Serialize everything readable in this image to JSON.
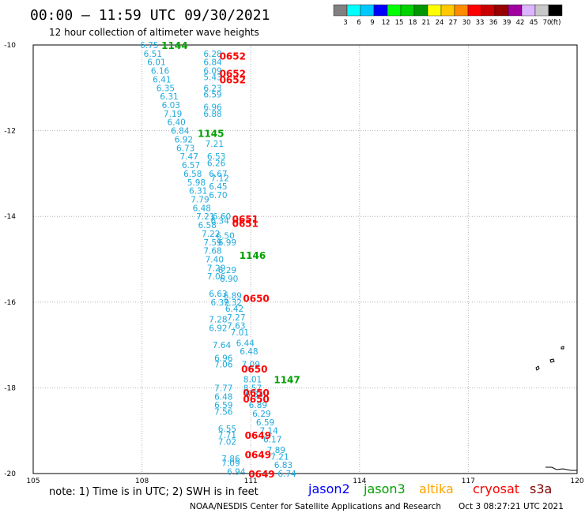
{
  "header": {
    "title": "00:00 — 11:59 UTC 09/30/2021",
    "subtitle": "12 hour collection of altimeter wave heights"
  },
  "colorbar": {
    "colors": [
      "#808080",
      "#00ffff",
      "#00c8ff",
      "#0000ff",
      "#00ff00",
      "#00d200",
      "#009600",
      "#ffff00",
      "#ffc800",
      "#ff8c00",
      "#ff0000",
      "#c80000",
      "#960000",
      "#a000a0",
      "#dcb4ff",
      "#c8c8c8",
      "#000000"
    ],
    "labels": [
      "3",
      "6",
      "9",
      "12",
      "15",
      "18",
      "21",
      "24",
      "27",
      "30",
      "33",
      "36",
      "39",
      "42",
      "45",
      "70",
      "(ft)"
    ]
  },
  "footer": {
    "note": "note: 1) Time is in UTC; 2) SWH is in feet",
    "credit": "NOAA/NESDIS Center for Satellite Applications and Research",
    "timestamp": "Oct  3 08:27:21 UTC 2021"
  },
  "satellites": [
    {
      "name": "jason2",
      "color": "#0000ff"
    },
    {
      "name": "jason3",
      "color": "#00a000"
    },
    {
      "name": "altika",
      "color": "#ffa500"
    },
    {
      "name": "cryosat",
      "color": "#ff0000"
    },
    {
      "name": "s3a",
      "color": "#800000"
    }
  ],
  "chart_data": {
    "type": "scatter",
    "x_ticks": [
      "105",
      "108",
      "111",
      "114",
      "117",
      "120"
    ],
    "y_ticks": [
      "-10",
      "-12",
      "-14",
      "-16",
      "-18",
      "-20"
    ],
    "xlim": [
      105,
      120
    ],
    "ylim": [
      -20,
      -10
    ],
    "grid": true,
    "swh_color": "#1eaadc",
    "swh_points": [
      {
        "lon": 108.2,
        "lat": -10.0,
        "v": "6.75"
      },
      {
        "lon": 108.3,
        "lat": -10.2,
        "v": "6.51"
      },
      {
        "lon": 108.4,
        "lat": -10.4,
        "v": "6.01"
      },
      {
        "lon": 108.5,
        "lat": -10.6,
        "v": "6.16"
      },
      {
        "lon": 108.55,
        "lat": -10.8,
        "v": "6.41"
      },
      {
        "lon": 108.65,
        "lat": -11.0,
        "v": "6.35"
      },
      {
        "lon": 108.75,
        "lat": -11.2,
        "v": "6.31"
      },
      {
        "lon": 108.8,
        "lat": -11.4,
        "v": "6.03"
      },
      {
        "lon": 108.85,
        "lat": -11.6,
        "v": "7.19"
      },
      {
        "lon": 108.95,
        "lat": -11.8,
        "v": "6.40"
      },
      {
        "lon": 109.05,
        "lat": -12.0,
        "v": "6.84"
      },
      {
        "lon": 109.15,
        "lat": -12.2,
        "v": "6.92"
      },
      {
        "lon": 109.2,
        "lat": -12.4,
        "v": "6.73"
      },
      {
        "lon": 109.3,
        "lat": -12.6,
        "v": "7.47"
      },
      {
        "lon": 109.35,
        "lat": -12.8,
        "v": "6.57"
      },
      {
        "lon": 109.4,
        "lat": -13.0,
        "v": "6.58"
      },
      {
        "lon": 109.5,
        "lat": -13.2,
        "v": "5.98"
      },
      {
        "lon": 109.55,
        "lat": -13.4,
        "v": "6.31"
      },
      {
        "lon": 109.6,
        "lat": -13.6,
        "v": "7.79"
      },
      {
        "lon": 109.65,
        "lat": -13.8,
        "v": "6.48"
      },
      {
        "lon": 109.75,
        "lat": -14.0,
        "v": "7.21"
      },
      {
        "lon": 109.8,
        "lat": -14.2,
        "v": "6.58"
      },
      {
        "lon": 109.9,
        "lat": -14.4,
        "v": "7.22"
      },
      {
        "lon": 109.95,
        "lat": -14.6,
        "v": "7.59"
      },
      {
        "lon": 109.95,
        "lat": -14.8,
        "v": "7.68"
      },
      {
        "lon": 110.0,
        "lat": -15.0,
        "v": "7.40"
      },
      {
        "lon": 110.05,
        "lat": -15.2,
        "v": "7.29"
      },
      {
        "lon": 110.05,
        "lat": -15.4,
        "v": "7.06"
      },
      {
        "lon": 110.1,
        "lat": -15.8,
        "v": "6.63"
      },
      {
        "lon": 110.15,
        "lat": -16.0,
        "v": "6.39"
      },
      {
        "lon": 110.1,
        "lat": -16.4,
        "v": "7.28"
      },
      {
        "lon": 110.1,
        "lat": -16.6,
        "v": "6.92"
      },
      {
        "lon": 110.2,
        "lat": -17.0,
        "v": "7.64"
      },
      {
        "lon": 110.25,
        "lat": -17.3,
        "v": "6.96"
      },
      {
        "lon": 110.25,
        "lat": -17.45,
        "v": "7.06"
      },
      {
        "lon": 110.25,
        "lat": -18.0,
        "v": "7.77"
      },
      {
        "lon": 110.25,
        "lat": -18.2,
        "v": "6.48"
      },
      {
        "lon": 110.25,
        "lat": -18.4,
        "v": "6.59"
      },
      {
        "lon": 110.25,
        "lat": -18.55,
        "v": "7.56"
      },
      {
        "lon": 110.35,
        "lat": -18.95,
        "v": "6.55"
      },
      {
        "lon": 110.35,
        "lat": -19.1,
        "v": "7.71"
      },
      {
        "lon": 110.35,
        "lat": -19.25,
        "v": "7.02"
      },
      {
        "lon": 110.45,
        "lat": -19.65,
        "v": "7.86"
      },
      {
        "lon": 110.45,
        "lat": -19.75,
        "v": "7.09"
      },
      {
        "lon": 110.45,
        "lat": -19.85,
        "v": ""
      },
      {
        "lon": 110.6,
        "lat": -19.95,
        "v": "6.94"
      },
      {
        "lon": 109.95,
        "lat": -10.2,
        "v": "6.28"
      },
      {
        "lon": 109.95,
        "lat": -10.4,
        "v": "6.84"
      },
      {
        "lon": 109.95,
        "lat": -10.6,
        "v": "6.09"
      },
      {
        "lon": 109.95,
        "lat": -10.75,
        "v": "5.43"
      },
      {
        "lon": 109.95,
        "lat": -11.0,
        "v": "6.23"
      },
      {
        "lon": 109.95,
        "lat": -11.15,
        "v": "6.59"
      },
      {
        "lon": 109.95,
        "lat": -11.45,
        "v": "6.96"
      },
      {
        "lon": 109.95,
        "lat": -11.6,
        "v": "6.88"
      },
      {
        "lon": 110.0,
        "lat": -12.3,
        "v": "7.21"
      },
      {
        "lon": 110.05,
        "lat": -12.6,
        "v": "6.53"
      },
      {
        "lon": 110.05,
        "lat": -12.75,
        "v": "6.26"
      },
      {
        "lon": 110.1,
        "lat": -13.0,
        "v": "6.67"
      },
      {
        "lon": 110.15,
        "lat": -13.1,
        "v": "7.12"
      },
      {
        "lon": 110.1,
        "lat": -13.3,
        "v": "6.45"
      },
      {
        "lon": 110.1,
        "lat": -13.5,
        "v": "6.70"
      },
      {
        "lon": 110.2,
        "lat": -14.0,
        "v": "6.60"
      },
      {
        "lon": 110.15,
        "lat": -14.1,
        "v": "6.34"
      },
      {
        "lon": 110.3,
        "lat": -14.45,
        "v": "6.50"
      },
      {
        "lon": 110.35,
        "lat": -14.6,
        "v": "6.99"
      },
      {
        "lon": 110.35,
        "lat": -15.25,
        "v": "6.29"
      },
      {
        "lon": 110.4,
        "lat": -15.45,
        "v": "6.90"
      },
      {
        "lon": 110.5,
        "lat": -15.85,
        "v": "6.89"
      },
      {
        "lon": 110.5,
        "lat": -16.0,
        "v": "7.32"
      },
      {
        "lon": 110.55,
        "lat": -16.15,
        "v": "6.42"
      },
      {
        "lon": 110.6,
        "lat": -16.35,
        "v": "7.27"
      },
      {
        "lon": 110.6,
        "lat": -16.55,
        "v": "7.63"
      },
      {
        "lon": 110.7,
        "lat": -16.7,
        "v": "7.01"
      },
      {
        "lon": 110.85,
        "lat": -16.95,
        "v": "6.44"
      },
      {
        "lon": 110.95,
        "lat": -17.15,
        "v": "6.48"
      },
      {
        "lon": 111.0,
        "lat": -17.45,
        "v": "7.09"
      },
      {
        "lon": 111.05,
        "lat": -17.8,
        "v": "8.01"
      },
      {
        "lon": 111.05,
        "lat": -18.0,
        "v": "8.57"
      },
      {
        "lon": 111.1,
        "lat": -18.15,
        "v": "6.34"
      },
      {
        "lon": 111.2,
        "lat": -18.4,
        "v": "6.89"
      },
      {
        "lon": 111.3,
        "lat": -18.6,
        "v": "6.29"
      },
      {
        "lon": 111.4,
        "lat": -18.8,
        "v": "6.59"
      },
      {
        "lon": 111.5,
        "lat": -19.0,
        "v": "7.14"
      },
      {
        "lon": 111.6,
        "lat": -19.2,
        "v": "6.17"
      },
      {
        "lon": 111.7,
        "lat": -19.45,
        "v": "7.89"
      },
      {
        "lon": 111.8,
        "lat": -19.6,
        "v": "7.21"
      },
      {
        "lon": 111.9,
        "lat": -19.8,
        "v": "6.83"
      },
      {
        "lon": 112.0,
        "lat": -20.0,
        "v": "6.74"
      }
    ],
    "pass_times": [
      {
        "lon": 108.9,
        "lat": -10.0,
        "t": "1144",
        "sat": "jason3"
      },
      {
        "lon": 110.5,
        "lat": -10.25,
        "t": "0652",
        "sat": "cryosat"
      },
      {
        "lon": 110.5,
        "lat": -10.65,
        "t": "0652",
        "sat": "cryosat"
      },
      {
        "lon": 110.5,
        "lat": -10.8,
        "t": "0652",
        "sat": "cryosat"
      },
      {
        "lon": 109.9,
        "lat": -12.05,
        "t": "1145",
        "sat": "jason3"
      },
      {
        "lon": 110.85,
        "lat": -14.05,
        "t": "0651",
        "sat": "cryosat"
      },
      {
        "lon": 110.85,
        "lat": -14.15,
        "t": "0651",
        "sat": "cryosat"
      },
      {
        "lon": 111.05,
        "lat": -14.9,
        "t": "1146",
        "sat": "jason3"
      },
      {
        "lon": 111.15,
        "lat": -15.9,
        "t": "0650",
        "sat": "cryosat"
      },
      {
        "lon": 111.1,
        "lat": -17.55,
        "t": "0650",
        "sat": "cryosat"
      },
      {
        "lon": 112.0,
        "lat": -17.8,
        "t": "1147",
        "sat": "jason3"
      },
      {
        "lon": 111.15,
        "lat": -18.1,
        "t": "0650",
        "sat": "cryosat"
      },
      {
        "lon": 111.15,
        "lat": -18.25,
        "t": "0650",
        "sat": "cryosat"
      },
      {
        "lon": 111.2,
        "lat": -19.1,
        "t": "0649",
        "sat": "cryosat"
      },
      {
        "lon": 111.2,
        "lat": -19.55,
        "t": "0649",
        "sat": "cryosat"
      },
      {
        "lon": 111.3,
        "lat": -20.0,
        "t": "0649",
        "sat": "cryosat"
      }
    ]
  }
}
